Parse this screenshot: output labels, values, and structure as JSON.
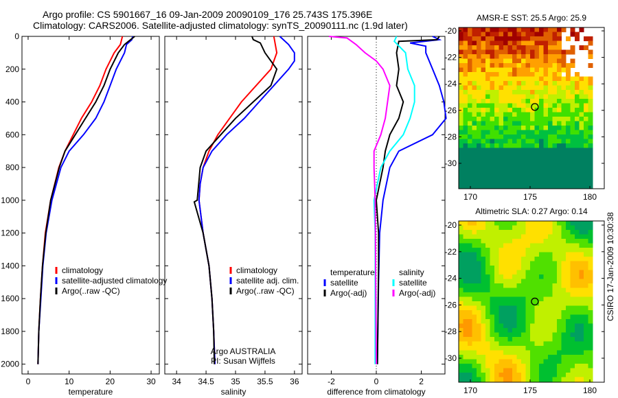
{
  "title_line1": "Argo profile: CS 5901667_16 09-Jan-2009 20090109_176 25.743S 175.396E",
  "title_line2": "Climatology: CARS2006. Satellite-adjusted climatology: synTS_20090111.nc (1.9d later)",
  "colors": {
    "climatology": "#ff0000",
    "satellite": "#0000ff",
    "argo": "#000000",
    "sal_satellite": "#00ffff",
    "sal_argo": "#ff00ff"
  },
  "footer_stamp": "CSIRO 17-Jan-2009 10:30:38",
  "chart_data": [
    {
      "type": "line",
      "id": "temperature",
      "xlabel": "temperature",
      "ylabel": "",
      "xlim": [
        -1.5,
        32
      ],
      "ylim": [
        2060,
        0
      ],
      "xticks": [
        0,
        10,
        20,
        30
      ],
      "yticks": [
        0,
        200,
        400,
        600,
        800,
        1000,
        1200,
        1400,
        1600,
        1800,
        2000
      ],
      "legend": {
        "placement": "bottom-center",
        "entries": [
          "climatology",
          "satellite-adjusted climatology",
          "Argo(..raw -QC)"
        ]
      },
      "series": [
        {
          "name": "climatology",
          "color": "#ff0000",
          "depth": [
            0,
            50,
            100,
            200,
            300,
            400,
            500,
            600,
            700,
            800,
            1000,
            1200,
            1400,
            1600,
            1800,
            2000
          ],
          "values": [
            23,
            22.5,
            21,
            19,
            17.5,
            15.5,
            13,
            11,
            9,
            7.5,
            5.5,
            4.2,
            3.5,
            3,
            2.6,
            2.4
          ]
        },
        {
          "name": "satellite-adjusted climatology",
          "color": "#0000ff",
          "depth": [
            0,
            20,
            50,
            100,
            200,
            300,
            400,
            500,
            600,
            700,
            800,
            1000,
            1200,
            1400,
            1600,
            1800,
            2000
          ],
          "values": [
            25.5,
            25.3,
            24,
            23.5,
            21.5,
            20,
            18.5,
            16.5,
            13.5,
            10,
            8,
            5.8,
            4.4,
            3.6,
            3.1,
            2.6,
            2.4
          ]
        },
        {
          "name": "Argo(..raw -QC)",
          "color": "#000000",
          "depth": [
            0,
            30,
            50,
            100,
            200,
            300,
            400,
            500,
            600,
            700,
            800,
            1000,
            1200,
            1400,
            1600,
            1800,
            2000
          ],
          "values": [
            26,
            24.5,
            23.5,
            22,
            20,
            18.5,
            16.5,
            14,
            11.5,
            9,
            7.6,
            5.5,
            4.3,
            3.5,
            3,
            2.6,
            2.4
          ]
        }
      ]
    },
    {
      "type": "line",
      "id": "salinity",
      "xlabel": "salinity",
      "ylabel": "",
      "xlim": [
        33.8,
        36.13
      ],
      "ylim": [
        2060,
        0
      ],
      "xticks": [
        34,
        34.5,
        35,
        35.5,
        36
      ],
      "xticklabels": [
        "34",
        "34.5",
        "35",
        "35.5",
        "36"
      ],
      "legend": {
        "placement": "bottom-right",
        "entries": [
          "climatology",
          "satellite adj. clim.",
          "Argo(..raw -QC)"
        ]
      },
      "annotation": [
        "Argo AUSTRALIA",
        "PI: Susan Wijffels"
      ],
      "series": [
        {
          "name": "climatology",
          "color": "#ff0000",
          "depth": [
            0,
            100,
            200,
            300,
            400,
            500,
            600,
            700,
            800,
            900,
            1000,
            1200,
            1400,
            1600,
            1800,
            2000
          ],
          "values": [
            35.65,
            35.7,
            35.6,
            35.35,
            35.1,
            34.9,
            34.7,
            34.55,
            34.45,
            34.4,
            34.38,
            34.45,
            34.55,
            34.6,
            34.63,
            34.65
          ]
        },
        {
          "name": "satellite adj. clim.",
          "color": "#0000ff",
          "depth": [
            0,
            50,
            100,
            150,
            200,
            300,
            400,
            500,
            600,
            700,
            800,
            900,
            1000,
            1200,
            1400,
            1600,
            1800,
            2000
          ],
          "values": [
            35.75,
            35.9,
            36.0,
            36.0,
            35.9,
            35.65,
            35.4,
            35.15,
            34.85,
            34.6,
            34.45,
            34.4,
            34.38,
            34.45,
            34.55,
            34.6,
            34.63,
            34.65
          ]
        },
        {
          "name": "Argo(..raw -QC)",
          "color": "#000000",
          "depth": [
            0,
            20,
            40,
            100,
            200,
            300,
            400,
            500,
            600,
            700,
            800,
            1000,
            1010,
            1200,
            1400,
            1600,
            1800,
            2000
          ],
          "values": [
            35.28,
            35.3,
            35.42,
            35.5,
            35.7,
            35.6,
            35.3,
            35.0,
            34.75,
            34.5,
            34.4,
            34.35,
            34.3,
            34.45,
            34.55,
            34.6,
            34.63,
            34.64
          ]
        }
      ]
    },
    {
      "type": "line",
      "id": "difference",
      "xlabel": "difference from climatology",
      "xlim": [
        -3.05,
        3.05
      ],
      "ylim": [
        2060,
        0
      ],
      "xticks": [
        -2,
        0,
        2
      ],
      "legend": {
        "placement": "bottom",
        "headers": [
          "temperature",
          "salinity"
        ],
        "entries": [
          "satellite",
          "Argo(-adj)",
          "satellite",
          "Argo(-adj)"
        ]
      },
      "series": [
        {
          "name": "temperature satellite",
          "color": "#0000ff",
          "depth": [
            0,
            20,
            40,
            60,
            100,
            200,
            300,
            400,
            500,
            600,
            700,
            800,
            1000,
            1200,
            1500,
            2000
          ],
          "values": [
            2.5,
            2.8,
            1.5,
            2.2,
            2.2,
            2.5,
            2.8,
            3.0,
            3.1,
            2.5,
            1.0,
            0.6,
            0.3,
            0.15,
            0.1,
            0.05
          ]
        },
        {
          "name": "temperature Argo(-adj)",
          "color": "#000000",
          "depth": [
            0,
            20,
            30,
            100,
            200,
            300,
            400,
            500,
            600,
            700,
            800,
            1000,
            1200,
            1400,
            2000
          ],
          "values": [
            2.8,
            2.7,
            1.0,
            0.9,
            1.0,
            0.9,
            1.2,
            1.0,
            0.6,
            0.4,
            0.3,
            0.0,
            0.1,
            0.1,
            0.05
          ]
        },
        {
          "name": "salinity satellite",
          "color": "#00ffff",
          "depth": [
            0,
            30,
            100,
            200,
            300,
            400,
            500,
            600,
            700,
            800,
            1000,
            1200,
            2000
          ],
          "values": [
            0.9,
            0.8,
            1.3,
            1.4,
            1.7,
            1.7,
            1.5,
            1.2,
            0.6,
            0.2,
            -0.1,
            -0.05,
            -0.05
          ]
        },
        {
          "name": "salinity Argo(-adj)",
          "color": "#ff00ff",
          "depth": [
            0,
            10,
            50,
            100,
            150,
            200,
            300,
            400,
            500,
            600,
            700,
            800,
            1000,
            2000
          ],
          "values": [
            -2.1,
            -1.3,
            -0.9,
            -0.5,
            0.0,
            0.3,
            0.6,
            0.5,
            0.4,
            0.2,
            -0.1,
            -0.1,
            -0.05,
            0
          ]
        }
      ]
    },
    {
      "type": "heatmap",
      "id": "sst-map",
      "title": "AMSR-E SST: 25.5 Argo: 25.9",
      "xlim": [
        169,
        181.2
      ],
      "ylim": [
        -31.5,
        -19.7
      ],
      "xticks": [
        170,
        175,
        180
      ],
      "yticks": [
        -20,
        -22,
        -24,
        -26,
        -28,
        -30
      ],
      "marker": {
        "lon": 175.396,
        "lat": -25.743
      }
    },
    {
      "type": "heatmap",
      "id": "sla-map",
      "title": "Altimetric SLA: 0.27 Argo: 0.14",
      "xlim": [
        169,
        181.2
      ],
      "ylim": [
        -31.5,
        -19.7
      ],
      "xticks": [
        170,
        175,
        180
      ],
      "yticks": [
        -20,
        -22,
        -24,
        -26,
        -28,
        -30
      ],
      "marker": {
        "lon": 175.396,
        "lat": -25.743
      }
    }
  ]
}
